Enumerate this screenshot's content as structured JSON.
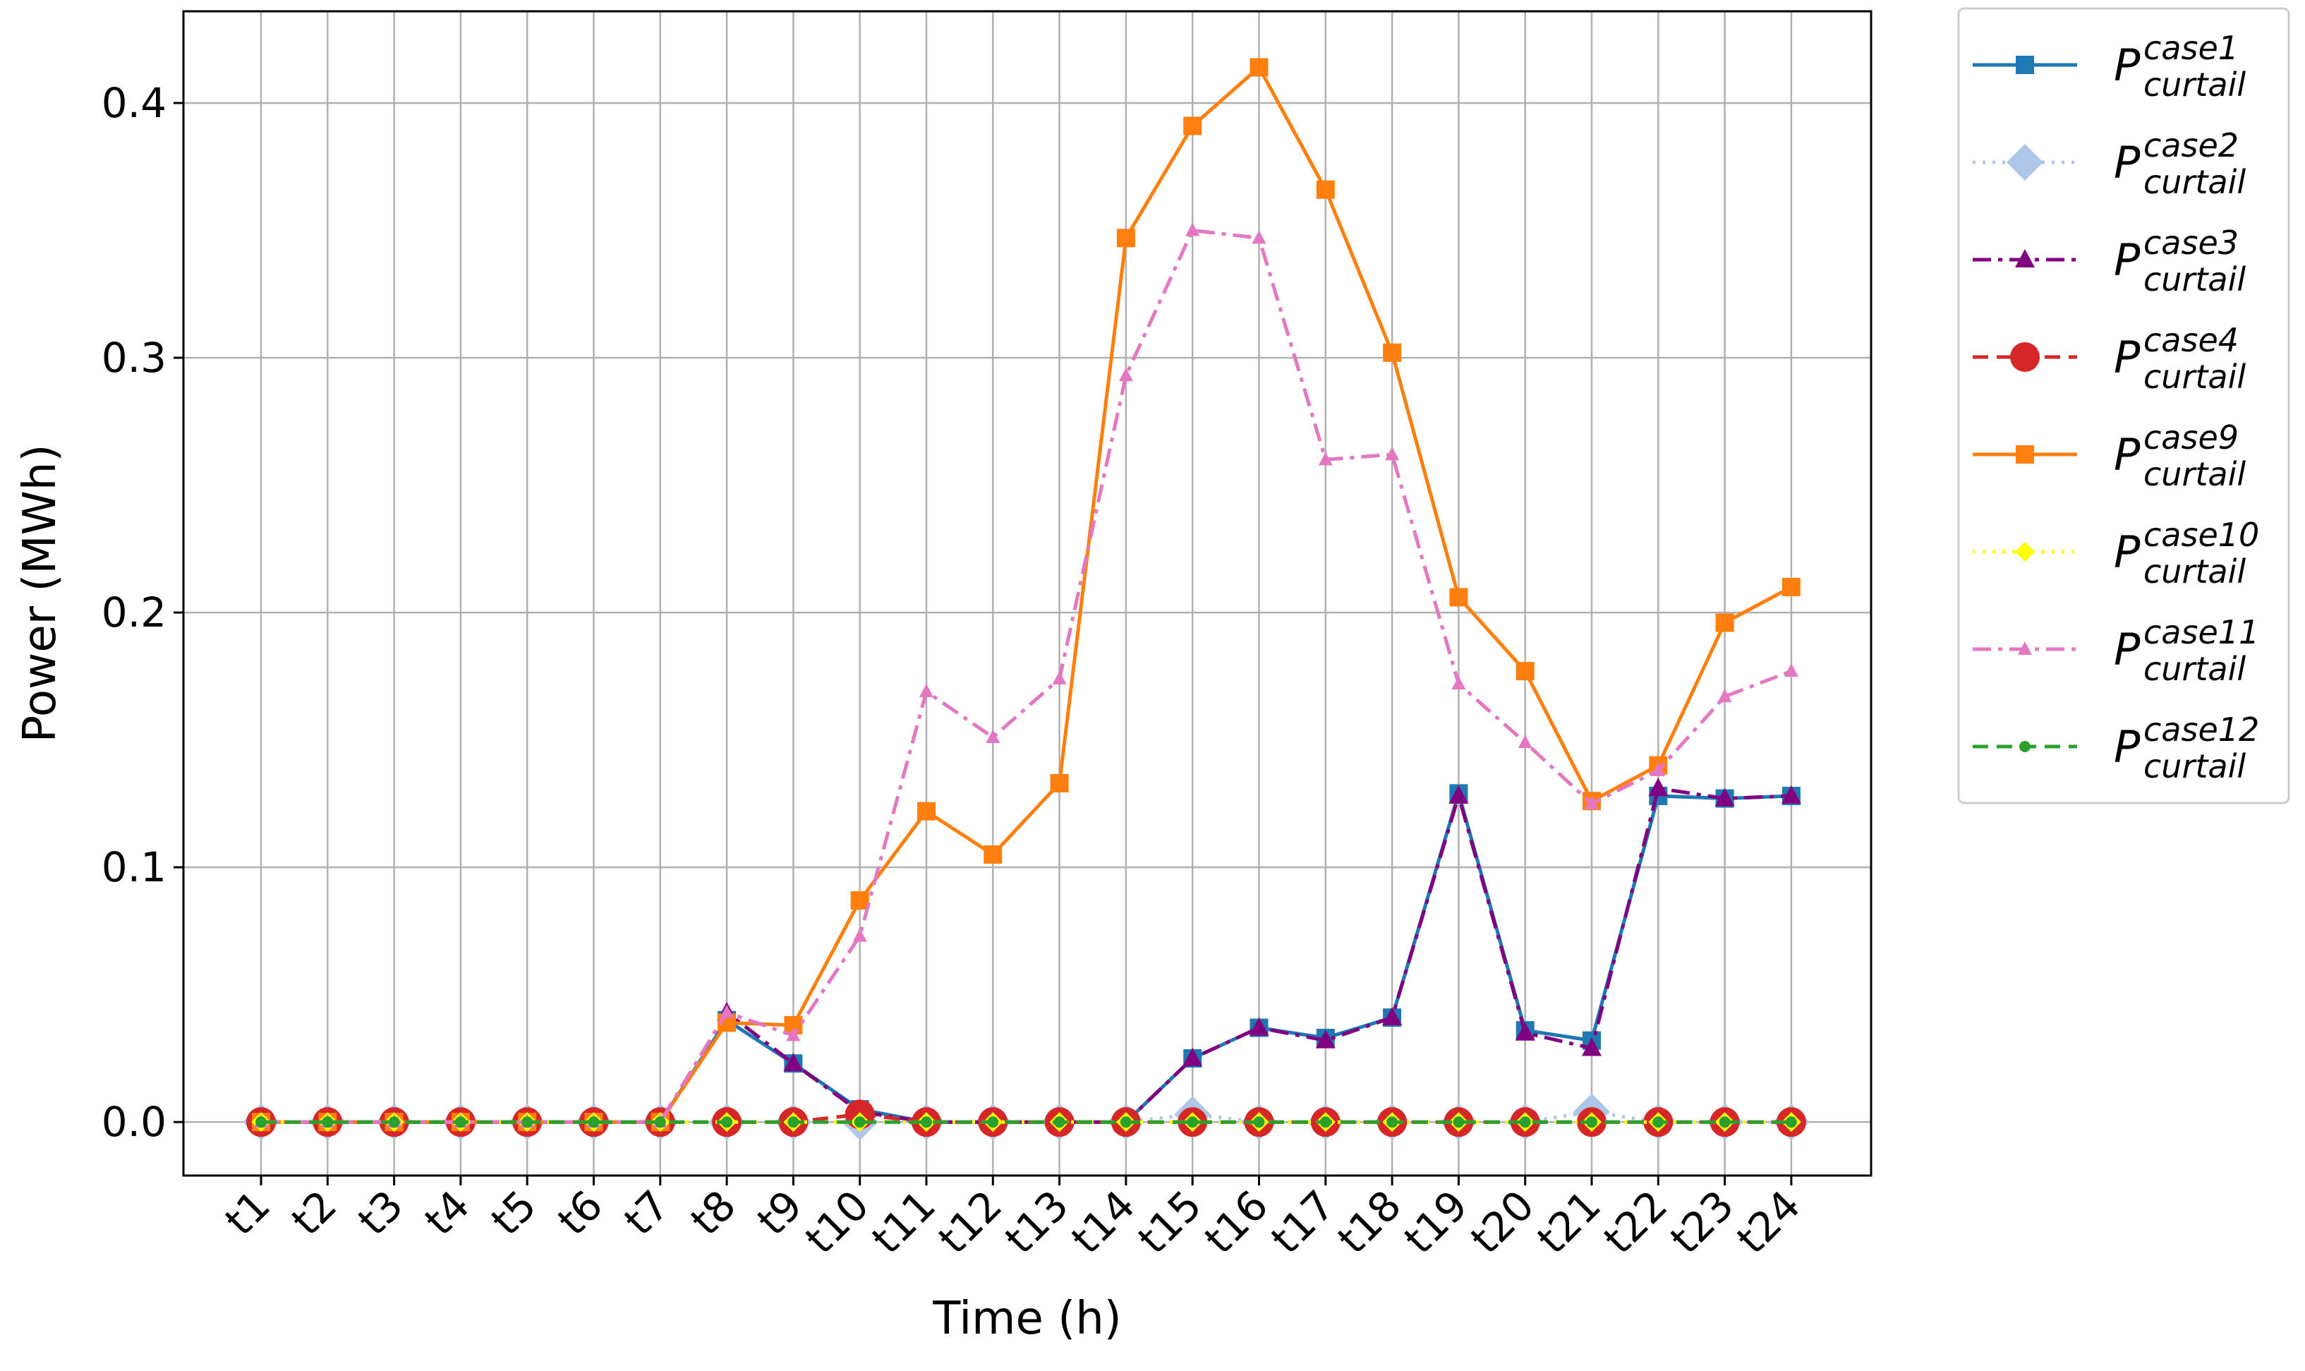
{
  "chart_data": {
    "type": "line",
    "title": "",
    "xlabel": "Time (h)",
    "ylabel": "Power (MWh)",
    "categories": [
      "t1",
      "t2",
      "t3",
      "t4",
      "t5",
      "t6",
      "t7",
      "t8",
      "t9",
      "t10",
      "t11",
      "t12",
      "t13",
      "t14",
      "t15",
      "t16",
      "t17",
      "t18",
      "t19",
      "t20",
      "t21",
      "t22",
      "t23",
      "t24"
    ],
    "y_ticks": [
      "0.0",
      "0.1",
      "0.2",
      "0.3",
      "0.4"
    ],
    "ylim": [
      -0.021,
      0.436
    ],
    "grid": true,
    "legend_position": "outside-right",
    "series": [
      {
        "name_base": "P",
        "name_sub": "curtail",
        "name_sup": "case1",
        "color": "#1f77b4",
        "line": "solid",
        "marker": "square",
        "values": [
          0,
          0,
          0,
          0,
          0,
          0,
          0,
          0.04,
          0.023,
          0.005,
          0,
          0,
          0,
          0,
          0.025,
          0.037,
          0.033,
          0.041,
          0.129,
          0.036,
          0.032,
          0.128,
          0.127,
          0.128
        ]
      },
      {
        "name_base": "P",
        "name_sub": "curtail",
        "name_sup": "case2",
        "color": "#aec7e8",
        "line": "dotted",
        "marker": "diamond",
        "values": [
          0,
          0,
          0,
          0,
          0,
          0,
          0,
          0,
          0,
          0,
          0,
          0,
          0,
          0,
          0.003,
          0,
          0,
          0,
          0,
          0,
          0.004,
          0,
          0,
          0
        ]
      },
      {
        "name_base": "P",
        "name_sub": "curtail",
        "name_sup": "case3",
        "color": "#800080",
        "line": "dashdot",
        "marker": "triangle",
        "values": [
          0,
          0,
          0,
          0,
          0,
          0,
          0,
          0.043,
          0.023,
          0.004,
          0,
          0,
          0,
          0,
          0.025,
          0.037,
          0.032,
          0.041,
          0.128,
          0.035,
          0.029,
          0.131,
          0.127,
          0.128
        ]
      },
      {
        "name_base": "P",
        "name_sub": "curtail",
        "name_sup": "case4",
        "color": "#d62728",
        "line": "dashed",
        "marker": "circle",
        "values": [
          0,
          0,
          0,
          0,
          0,
          0,
          0,
          0,
          0,
          0.003,
          0,
          0,
          0,
          0,
          0,
          0,
          0,
          0,
          0,
          0,
          0,
          0,
          0,
          0
        ]
      },
      {
        "name_base": "P",
        "name_sub": "curtail",
        "name_sup": "case9",
        "color": "#ff7f0e",
        "line": "solid",
        "marker": "square",
        "values": [
          0,
          0,
          0,
          0,
          0,
          0,
          0,
          0.039,
          0.038,
          0.087,
          0.122,
          0.105,
          0.133,
          0.347,
          0.391,
          0.414,
          0.366,
          0.302,
          0.206,
          0.177,
          0.126,
          0.14,
          0.196,
          0.21
        ]
      },
      {
        "name_base": "P",
        "name_sub": "curtail",
        "name_sup": "case10",
        "color": "#ffff00",
        "line": "dotted",
        "marker": "diamond-small",
        "values": [
          0,
          0,
          0,
          0,
          0,
          0,
          0,
          0,
          0,
          0,
          0,
          0,
          0,
          0,
          0,
          0,
          0,
          0,
          0,
          0,
          0,
          0,
          0,
          0
        ]
      },
      {
        "name_base": "P",
        "name_sub": "curtail",
        "name_sup": "case11",
        "color": "#e377c2",
        "line": "dashdot",
        "marker": "triangle-small",
        "values": [
          0,
          0,
          0,
          0,
          0,
          0,
          0,
          0.043,
          0.034,
          0.073,
          0.169,
          0.151,
          0.174,
          0.293,
          0.35,
          0.347,
          0.26,
          0.262,
          0.172,
          0.149,
          0.125,
          0.138,
          0.167,
          0.177
        ]
      },
      {
        "name_base": "P",
        "name_sub": "curtail",
        "name_sup": "case12",
        "color": "#2ca02c",
        "line": "dashed",
        "marker": "dot",
        "values": [
          0,
          0,
          0,
          0,
          0,
          0,
          0,
          0,
          0,
          0,
          0,
          0,
          0,
          0,
          0,
          0,
          0,
          0,
          0,
          0,
          0,
          0,
          0,
          0
        ]
      }
    ]
  }
}
